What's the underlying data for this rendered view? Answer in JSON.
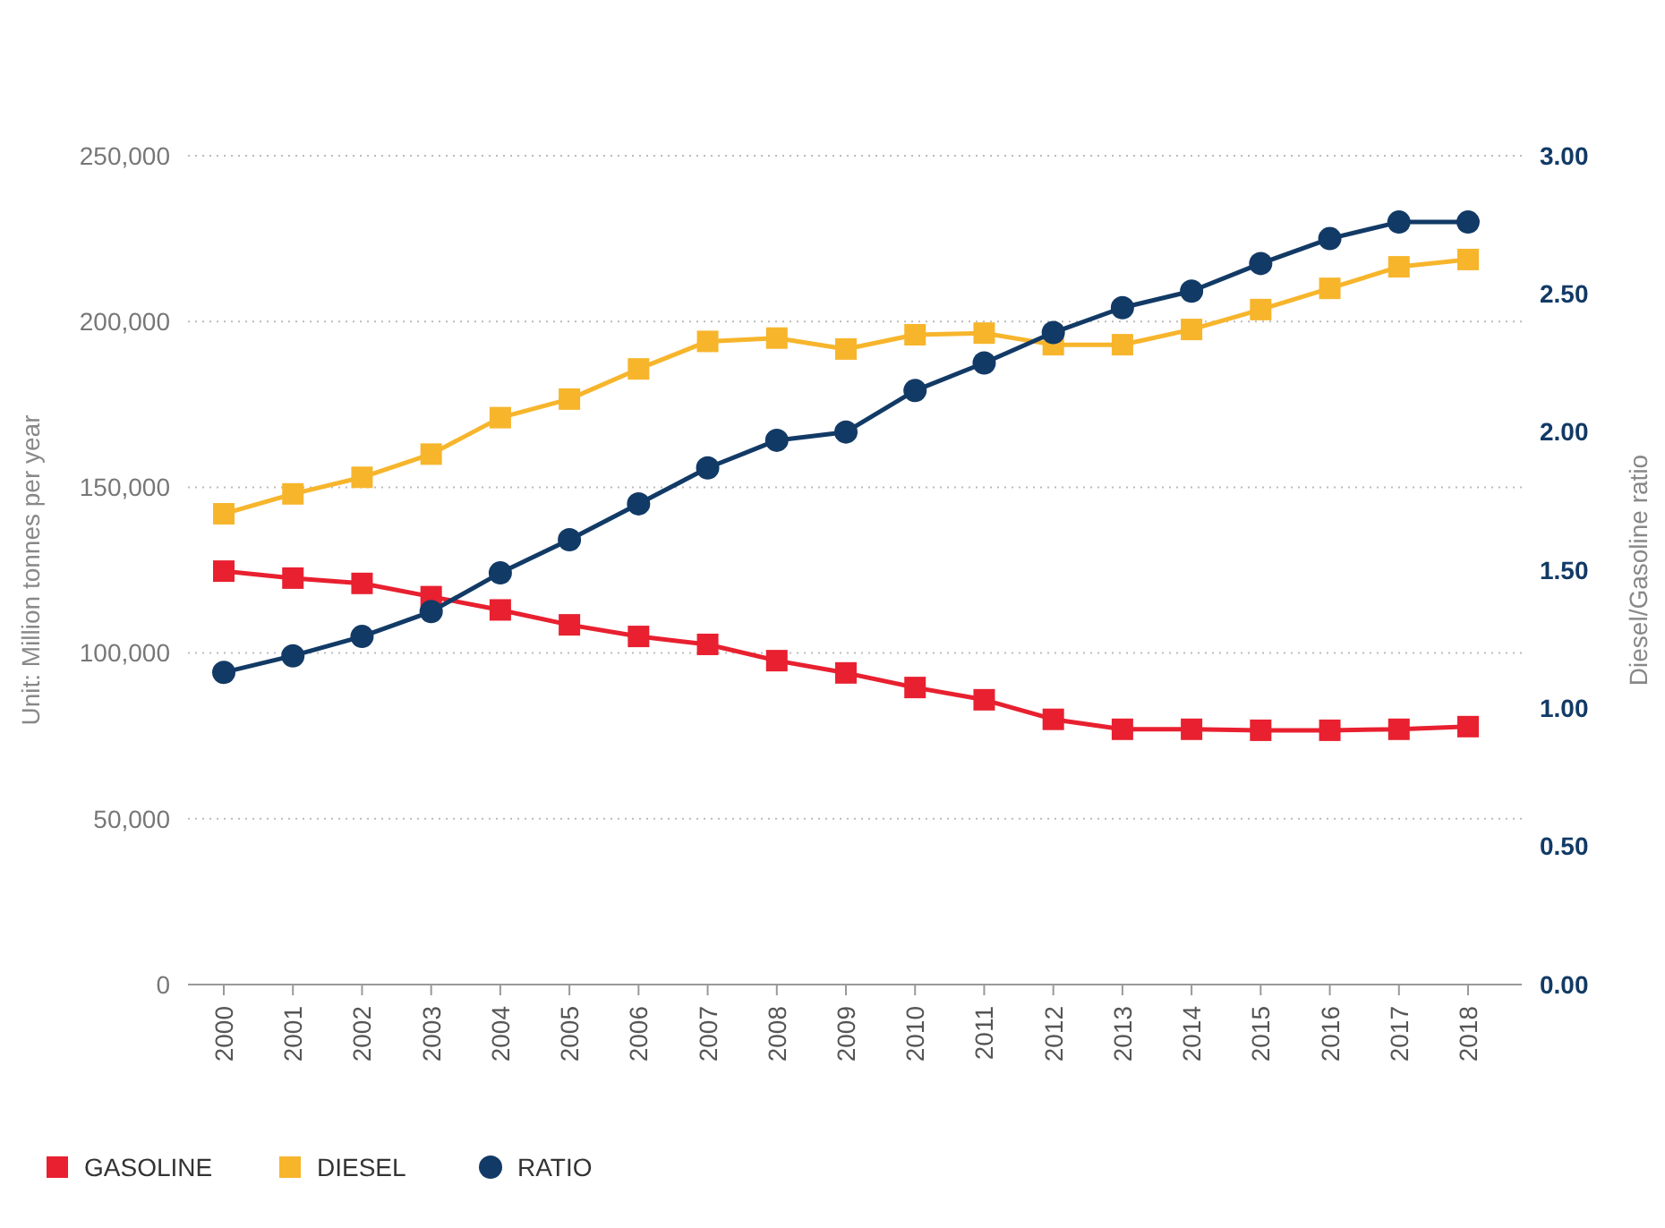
{
  "chart_data": {
    "type": "line",
    "ylabel": "Unit: Million tonnes per year",
    "y2label": "Diesel/Gasoline ratio",
    "categories": [
      "2000",
      "2001",
      "2002",
      "2003",
      "2004",
      "2005",
      "2006",
      "2007",
      "2008",
      "2009",
      "2010",
      "2011",
      "2012",
      "2013",
      "2014",
      "2015",
      "2016",
      "2017",
      "2018"
    ],
    "series": [
      {
        "name": "GASOLINE",
        "color": "#e8202f",
        "marker": "square",
        "values": [
          124700,
          122600,
          121000,
          117000,
          113000,
          108500,
          105000,
          102600,
          97700,
          94000,
          89600,
          85900,
          80000,
          77000,
          77000,
          76700,
          76700,
          77000,
          77800
        ]
      },
      {
        "name": "DIESEL",
        "color": "#f7b52c",
        "marker": "square",
        "values": [
          142000,
          148000,
          153000,
          160000,
          171000,
          176600,
          185700,
          194000,
          195000,
          191700,
          196000,
          196500,
          193000,
          193000,
          197600,
          203600,
          210000,
          216500,
          218700
        ]
      },
      {
        "name": "RATIO",
        "color": "#123a66",
        "marker": "circle",
        "axis": "y2",
        "values": [
          1.13,
          1.19,
          1.26,
          1.35,
          1.49,
          1.61,
          1.74,
          1.87,
          1.97,
          2.0,
          2.15,
          2.25,
          2.36,
          2.45,
          2.51,
          2.61,
          2.7,
          2.76,
          2.76
        ]
      }
    ],
    "ylim": [
      0,
      250000
    ],
    "yticks": [
      {
        "value": 0,
        "label": "0"
      },
      {
        "value": 50000,
        "label": "50,000"
      },
      {
        "value": 100000,
        "label": "100,000"
      },
      {
        "value": 150000,
        "label": "150,000"
      },
      {
        "value": 200000,
        "label": "200,000"
      },
      {
        "value": 250000,
        "label": "250,000"
      }
    ],
    "y2lim": [
      0,
      3
    ],
    "y2ticks": [
      {
        "value": 0,
        "label": "0.00"
      },
      {
        "value": 0.5,
        "label": "0.50"
      },
      {
        "value": 1,
        "label": "1.00"
      },
      {
        "value": 1.5,
        "label": "1.50"
      },
      {
        "value": 2,
        "label": "2.00"
      },
      {
        "value": 2.5,
        "label": "2.50"
      },
      {
        "value": 3,
        "label": "3.00"
      }
    ],
    "grid": "y",
    "legend": "bottom"
  }
}
